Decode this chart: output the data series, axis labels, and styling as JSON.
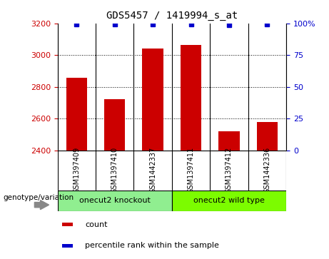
{
  "title": "GDS5457 / 1419994_s_at",
  "samples": [
    "GSM1397409",
    "GSM1397410",
    "GSM1442337",
    "GSM1397411",
    "GSM1397412",
    "GSM1442336"
  ],
  "bar_values": [
    2858,
    2720,
    3040,
    3065,
    2520,
    2578
  ],
  "percentile_values": [
    99.5,
    99.5,
    99.5,
    99.5,
    98.5,
    99.5
  ],
  "bar_color": "#cc0000",
  "dot_color": "#0000cc",
  "ylim_left": [
    2400,
    3200
  ],
  "ylim_right": [
    0,
    100
  ],
  "yticks_left": [
    2400,
    2600,
    2800,
    3000,
    3200
  ],
  "yticks_right": [
    0,
    25,
    50,
    75,
    100
  ],
  "grid_values": [
    3000,
    2800,
    2600
  ],
  "groups": [
    {
      "label": "onecut2 knockout",
      "start": 0,
      "end": 3,
      "color": "#90ee90"
    },
    {
      "label": "onecut2 wild type",
      "start": 3,
      "end": 6,
      "color": "#7cfc00"
    }
  ],
  "group_label_prefix": "genotype/variation",
  "legend_items": [
    {
      "color": "#cc0000",
      "label": "count"
    },
    {
      "color": "#0000cc",
      "label": "percentile rank within the sample"
    }
  ],
  "bg_color": "#ffffff",
  "plot_bg_color": "#ffffff",
  "tick_color_left": "#cc0000",
  "tick_color_right": "#0000cc",
  "bar_width": 0.55,
  "cell_bg_color": "#c8c8c8"
}
